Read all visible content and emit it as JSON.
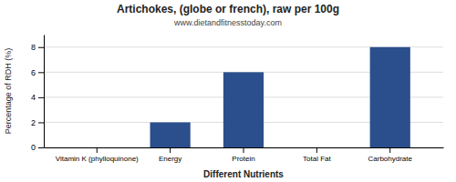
{
  "chart_data": {
    "type": "bar",
    "title": "Artichokes, (globe or french), raw per 100g",
    "subtitle": "www.dietandfitnesstoday.com",
    "x_label": "Different Nutrients",
    "y_label": "Percentage of RDH (%)",
    "categories": [
      "Vitamin K (phylloquinone)",
      "Energy",
      "Protein",
      "Total Fat",
      "Carbohydrate"
    ],
    "values": [
      0.0,
      2.0,
      6.0,
      0.0,
      8.0
    ],
    "color": "#2b4f8c",
    "ylim": [
      0,
      9
    ],
    "yticks": [
      0,
      2,
      4,
      6,
      8
    ],
    "grid": true
  }
}
